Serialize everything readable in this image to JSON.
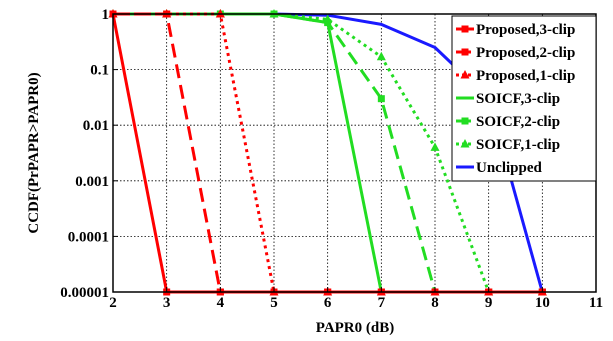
{
  "chart_data": {
    "type": "line",
    "xlabel": "PAPR0 (dB)",
    "ylabel": "CCDF(PrPAPR>PAPR0)",
    "xlim": [
      2,
      11
    ],
    "ylim": [
      1e-05,
      1
    ],
    "yscale": "log",
    "grid": true,
    "legend_position": "top-right",
    "x_ticks": [
      "2",
      "3",
      "4",
      "5",
      "6",
      "7",
      "8",
      "9",
      "10",
      "11"
    ],
    "y_ticks": [
      "0.00001",
      "0.0001",
      "0.001",
      "0.01",
      "0.1",
      "1"
    ],
    "series": [
      {
        "name": "Proposed,3-clip",
        "color": "#ff0000",
        "dash": "solid",
        "marker": "square",
        "x": [
          2,
          3,
          4,
          5,
          6,
          7,
          8,
          9,
          10
        ],
        "y": [
          1,
          1e-05,
          1e-05,
          1e-05,
          1e-05,
          1e-05,
          1e-05,
          1e-05,
          1e-05
        ]
      },
      {
        "name": "Proposed,2-clip",
        "color": "#ff0000",
        "dash": "dashed",
        "marker": "square",
        "x": [
          2,
          3,
          4,
          5,
          6,
          7,
          8,
          9,
          10
        ],
        "y": [
          1,
          1,
          1e-05,
          1e-05,
          1e-05,
          1e-05,
          1e-05,
          1e-05,
          1e-05
        ]
      },
      {
        "name": "Proposed,1-clip",
        "color": "#ff0000",
        "dash": "dotted",
        "marker": "triangle",
        "x": [
          2,
          3,
          4,
          5,
          6,
          7,
          8,
          9,
          10
        ],
        "y": [
          1,
          1,
          1,
          1e-05,
          1e-05,
          1e-05,
          1e-05,
          1e-05,
          1e-05
        ]
      },
      {
        "name": "SOICF,3-clip",
        "color": "#22dd22",
        "dash": "solid",
        "marker": "none",
        "x": [
          2,
          3,
          4,
          5,
          6,
          7,
          8,
          9,
          10
        ],
        "y": [
          1,
          1,
          1,
          1,
          0.7,
          1e-05,
          1e-05,
          1e-05,
          1e-05
        ]
      },
      {
        "name": "SOICF,2-clip",
        "color": "#22dd22",
        "dash": "dashed",
        "marker": "square",
        "x": [
          2,
          3,
          4,
          5,
          6,
          7,
          8,
          9,
          10
        ],
        "y": [
          1,
          1,
          1,
          1,
          0.7,
          0.03,
          1e-05,
          1e-05,
          1e-05
        ]
      },
      {
        "name": "SOICF,1-clip",
        "color": "#22dd22",
        "dash": "dotted",
        "marker": "triangle",
        "x": [
          2,
          3,
          4,
          5,
          6,
          7,
          8,
          9,
          10
        ],
        "y": [
          1,
          1,
          1,
          1,
          0.8,
          0.17,
          0.004,
          1e-05,
          1e-05
        ]
      },
      {
        "name": "Unclipped",
        "color": "#1a1aff",
        "dash": "solid",
        "marker": "none",
        "x": [
          2,
          3,
          4,
          5,
          6,
          7,
          8,
          9,
          10
        ],
        "y": [
          1,
          1,
          1,
          1,
          0.95,
          0.65,
          0.25,
          0.03,
          1e-05
        ]
      }
    ]
  }
}
